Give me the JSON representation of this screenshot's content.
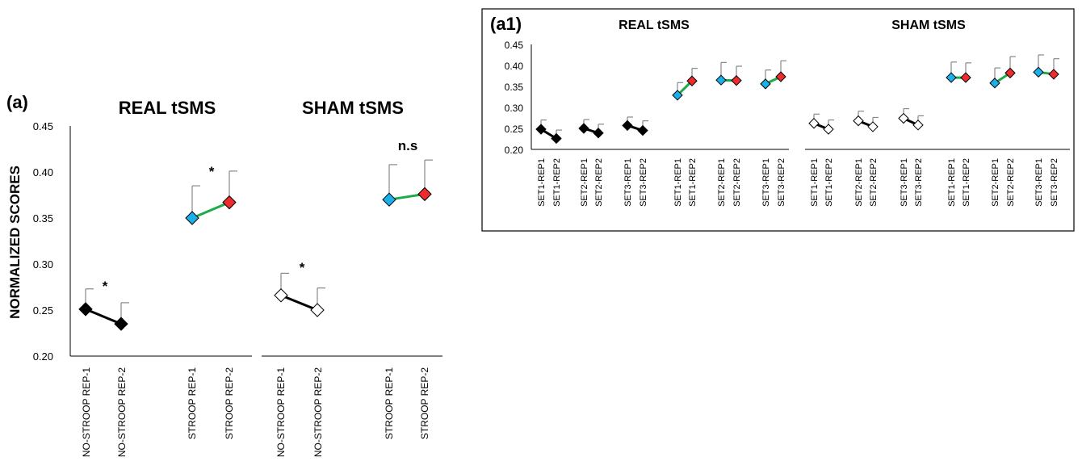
{
  "colors": {
    "black_marker": "#000000",
    "open_marker_fill": "#ffffff",
    "rep1_stroop": "#1ab0e8",
    "rep2_stroop": "#ee2c2c",
    "stroop_line": "#1faa4a",
    "nostroop_line": "#000000",
    "error_bar": "#888888"
  },
  "chart_data": [
    {
      "panel": "(a)",
      "type": "line",
      "ylabel": "NORMALIZED SCORES",
      "ylim": [
        0.2,
        0.45
      ],
      "yticks": [
        "0.45",
        "0.40",
        "0.35",
        "0.30",
        "0.25",
        "0.20"
      ],
      "groups": [
        {
          "title": "REAL tSMS",
          "pairs": [
            {
              "categories": [
                "NO-STROOP REP-1",
                "NO-STROOP REP-2"
              ],
              "values": [
                0.251,
                0.235
              ],
              "errors": [
                0.022,
                0.023
              ],
              "marker": "filled",
              "significance": "*"
            },
            {
              "categories": [
                "STROOP REP-1",
                "STROOP REP-2"
              ],
              "values": [
                0.35,
                0.367
              ],
              "errors": [
                0.035,
                0.034
              ],
              "marker": "color",
              "significance": "*"
            }
          ]
        },
        {
          "title": "SHAM tSMS",
          "pairs": [
            {
              "categories": [
                "NO-STROOP REP-1",
                "NO-STROOP REP-2"
              ],
              "values": [
                0.266,
                0.25
              ],
              "errors": [
                0.024,
                0.024
              ],
              "marker": "open",
              "significance": "*"
            },
            {
              "categories": [
                "STROOP REP-1",
                "STROOP REP-2"
              ],
              "values": [
                0.37,
                0.376
              ],
              "errors": [
                0.038,
                0.037
              ],
              "marker": "color",
              "significance": "n.s"
            }
          ]
        }
      ]
    },
    {
      "panel": "(a1)",
      "type": "line",
      "ylim": [
        0.2,
        0.45
      ],
      "yticks": [
        "0.45",
        "0.40",
        "0.35",
        "0.30",
        "0.25",
        "0.20"
      ],
      "groups": [
        {
          "title": "REAL tSMS",
          "pairs": [
            {
              "categories": [
                "SET1-REP1",
                "SET1-REP2"
              ],
              "values": [
                0.248,
                0.226
              ],
              "errors": [
                0.022,
                0.02
              ],
              "marker": "filled"
            },
            {
              "categories": [
                "SET2-REP1",
                "SET2-REP2"
              ],
              "values": [
                0.25,
                0.239
              ],
              "errors": [
                0.021,
                0.021
              ],
              "marker": "filled"
            },
            {
              "categories": [
                "SET3-REP1",
                "SET3-REP2"
              ],
              "values": [
                0.257,
                0.245
              ],
              "errors": [
                0.02,
                0.023
              ],
              "marker": "filled"
            },
            {
              "categories": [
                "SET1-REP1",
                "SET1-REP2"
              ],
              "values": [
                0.329,
                0.363
              ],
              "errors": [
                0.03,
                0.03
              ],
              "marker": "color"
            },
            {
              "categories": [
                "SET2-REP1",
                "SET2-REP2"
              ],
              "values": [
                0.365,
                0.364
              ],
              "errors": [
                0.042,
                0.034
              ],
              "marker": "color"
            },
            {
              "categories": [
                "SET3-REP1",
                "SET3-REP2"
              ],
              "values": [
                0.356,
                0.373
              ],
              "errors": [
                0.033,
                0.038
              ],
              "marker": "color"
            }
          ]
        },
        {
          "title": "SHAM tSMS",
          "pairs": [
            {
              "categories": [
                "SET1-REP1",
                "SET1-REP2"
              ],
              "values": [
                0.262,
                0.248
              ],
              "errors": [
                0.022,
                0.022
              ],
              "marker": "open"
            },
            {
              "categories": [
                "SET2-REP1",
                "SET2-REP2"
              ],
              "values": [
                0.268,
                0.254
              ],
              "errors": [
                0.023,
                0.022
              ],
              "marker": "open"
            },
            {
              "categories": [
                "SET3-REP1",
                "SET3-REP2"
              ],
              "values": [
                0.274,
                0.258
              ],
              "errors": [
                0.023,
                0.022
              ],
              "marker": "open"
            },
            {
              "categories": [
                "SET1-REP1",
                "SET1-REP2"
              ],
              "values": [
                0.371,
                0.371
              ],
              "errors": [
                0.037,
                0.035
              ],
              "marker": "color"
            },
            {
              "categories": [
                "SET2-REP1",
                "SET2-REP2"
              ],
              "values": [
                0.358,
                0.382
              ],
              "errors": [
                0.036,
                0.039
              ],
              "marker": "color"
            },
            {
              "categories": [
                "SET3-REP1",
                "SET3-REP2"
              ],
              "values": [
                0.384,
                0.379
              ],
              "errors": [
                0.041,
                0.037
              ],
              "marker": "color"
            }
          ]
        }
      ]
    }
  ]
}
